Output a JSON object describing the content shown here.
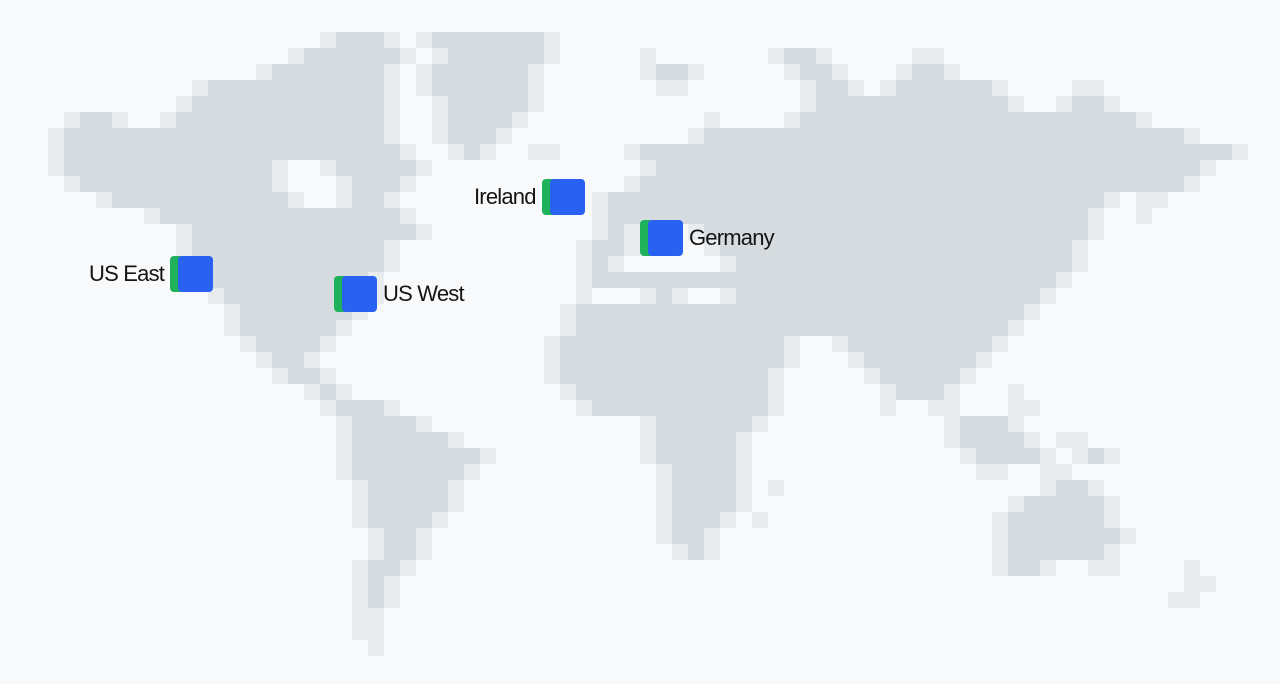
{
  "colors": {
    "background": "#f8f9fa",
    "land": "#d5dbde",
    "land_light": "#e8ecee",
    "pin_blue": "#2962f0",
    "pin_green": "#1fb25a",
    "label": "#141414"
  },
  "regions": [
    {
      "id": "us-east",
      "label": "US East",
      "icon": "region-pin-icon"
    },
    {
      "id": "us-west",
      "label": "US West",
      "icon": "region-pin-icon"
    },
    {
      "id": "ireland",
      "label": "Ireland",
      "icon": "region-pin-icon"
    },
    {
      "id": "germany",
      "label": "Germany",
      "icon": "region-pin-icon"
    }
  ]
}
